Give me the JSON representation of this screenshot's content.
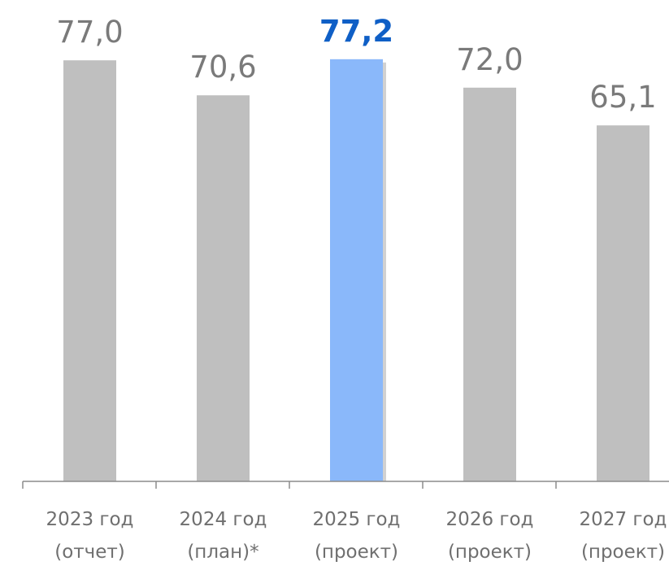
{
  "chart_data": {
    "type": "bar",
    "categories": [
      [
        "2023 год",
        "(отчет)"
      ],
      [
        "2024 год",
        "(план)*"
      ],
      [
        "2025 год",
        "(проект)"
      ],
      [
        "2026 год",
        "(проект)"
      ],
      [
        "2027 год",
        "(проект)"
      ]
    ],
    "values": [
      77.0,
      70.6,
      77.2,
      72.0,
      65.1
    ],
    "value_labels": [
      "77,0",
      "70,6",
      "77,2",
      "72,0",
      "65,1"
    ],
    "highlight_index": 2,
    "colors": {
      "bar": "#bfbfbf",
      "highlight_bar": "#8ab8fa",
      "highlight_label": "#0f5fc6",
      "label": "#7a7a7a",
      "axis": "#8c8c8c"
    },
    "title": "",
    "xlabel": "",
    "ylabel": "",
    "grid": false,
    "legend": "none"
  }
}
